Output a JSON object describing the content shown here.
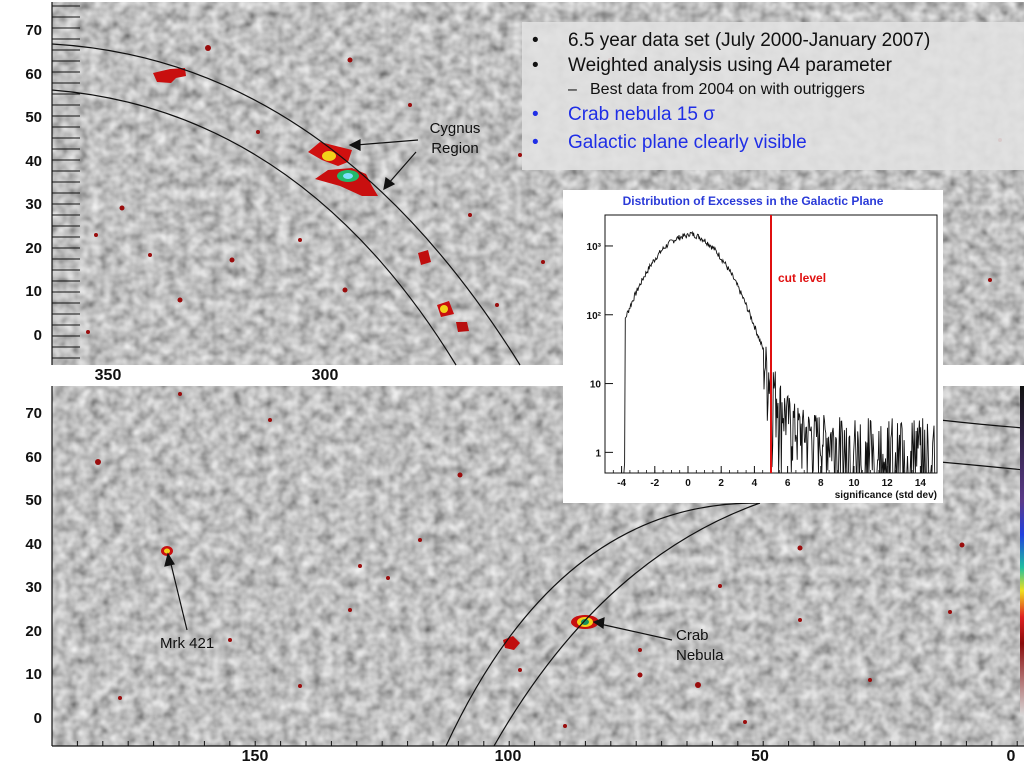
{
  "bullets": [
    {
      "marker": "•",
      "text": "6.5 year data set (July 2000-January 2007)",
      "color": "#111111",
      "sub": false
    },
    {
      "marker": "•",
      "text": "Weighted analysis using A4 parameter",
      "color": "#111111",
      "sub": false
    },
    {
      "marker": "–",
      "text": "Best data from 2004 on with outriggers",
      "color": "#111111",
      "sub": true
    },
    {
      "marker": "•",
      "text": "Crab nebula 15 σ",
      "color": "#1f2ee6",
      "sub": false
    },
    {
      "marker": "•",
      "text": "Galactic plane clearly visible",
      "color": "#1f2ee6",
      "sub": false
    }
  ],
  "top_map": {
    "y_ticks": [
      "70",
      "60",
      "50",
      "40",
      "30",
      "20",
      "10",
      "0"
    ],
    "x_ticks": [
      "350",
      "300"
    ],
    "annotation": [
      "Cygnus",
      "Region"
    ]
  },
  "bottom_map": {
    "y_ticks": [
      "70",
      "60",
      "50",
      "40",
      "30",
      "20",
      "10",
      "0"
    ],
    "x_ticks": [
      "150",
      "100",
      "50",
      "0"
    ],
    "annotation_mrk": "Mrk 421",
    "annotation_crab": [
      "Crab",
      "Nebula"
    ]
  },
  "inset": {
    "title": "Distribution of Excesses in the Galactic Plane",
    "cut_label": "cut level",
    "xlabel": "significance (std dev)",
    "x_ticks": [
      "-4",
      "-2",
      "0",
      "2",
      "4",
      "6",
      "8",
      "10",
      "12",
      "14"
    ],
    "y_ticks": [
      "10³",
      "10²",
      "10",
      "1"
    ],
    "cut_value": 5,
    "colors": {
      "title": "#2a3ad8",
      "cut": "#e01010"
    }
  },
  "colors": {
    "crab_text": "#1f2ee6"
  }
}
